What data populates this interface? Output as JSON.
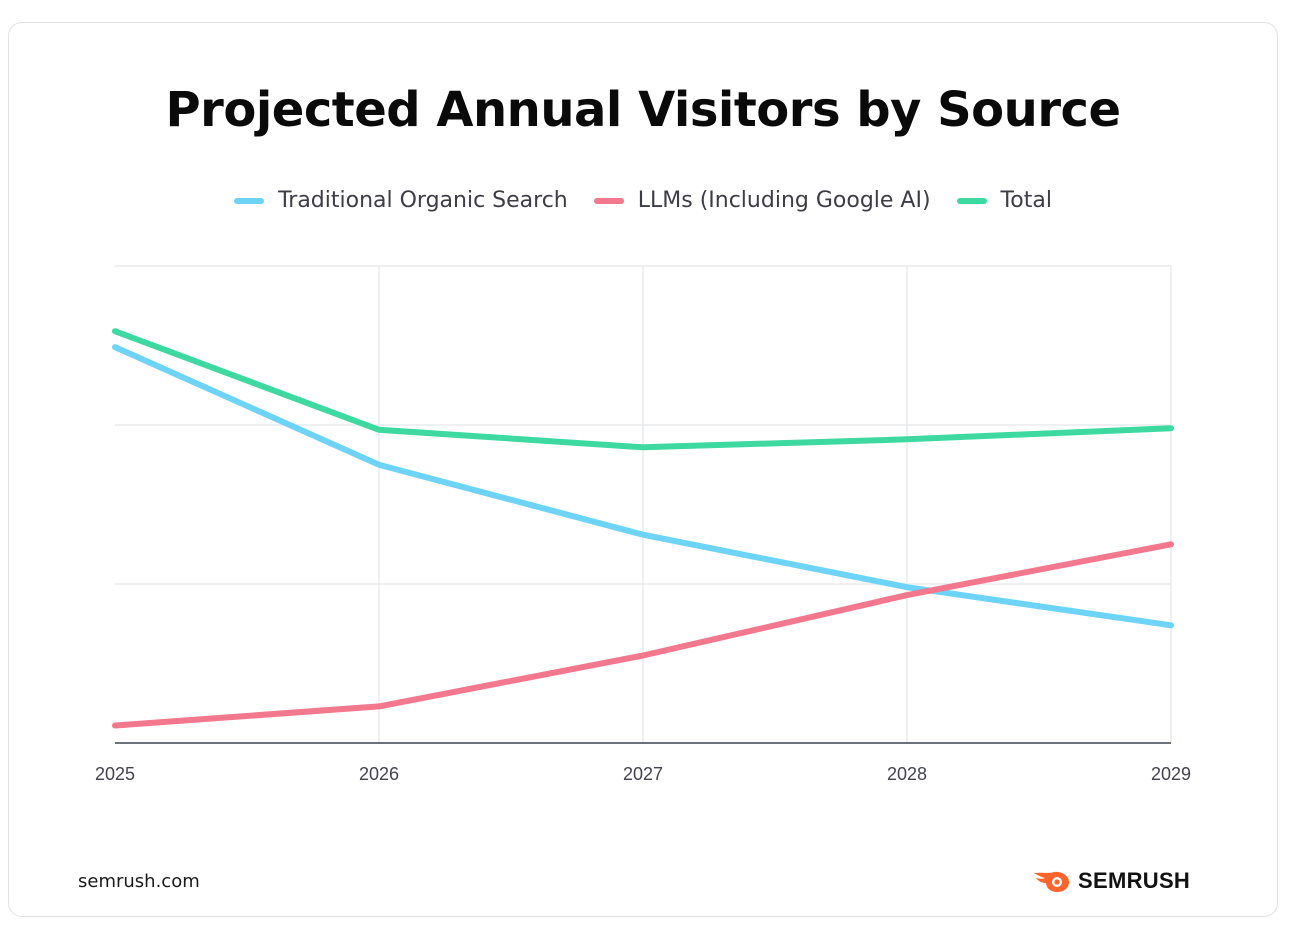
{
  "page": {
    "source": "semrush.com",
    "brand": "SEMRUSH",
    "brand_logo_icon": "semrush-fire-logo-icon"
  },
  "colors": {
    "traditional": "#6dd3f7",
    "llms": "#f4788d",
    "total": "#3dd9a0",
    "grid": "#e3e6ea",
    "axis": "#3b4252",
    "brand_accent": "#ff642d"
  },
  "chart_data": {
    "type": "line",
    "title": "Projected Annual Visitors by Source",
    "xlabel": "",
    "ylabel": "",
    "x": [
      "2025",
      "2026",
      "2027",
      "2028",
      "2029"
    ],
    "ylim": [
      0,
      3
    ],
    "grid": true,
    "legend_position": "top",
    "series": [
      {
        "name": "Traditional Organic Search",
        "color_key": "traditional",
        "values": [
          2.49,
          1.75,
          1.31,
          0.98,
          0.74
        ]
      },
      {
        "name": "LLMs (Including Google AI)",
        "color_key": "llms",
        "values": [
          0.11,
          0.23,
          0.55,
          0.93,
          1.25
        ]
      },
      {
        "name": "Total",
        "color_key": "total",
        "values": [
          2.59,
          1.97,
          1.86,
          1.91,
          1.98
        ]
      }
    ]
  }
}
